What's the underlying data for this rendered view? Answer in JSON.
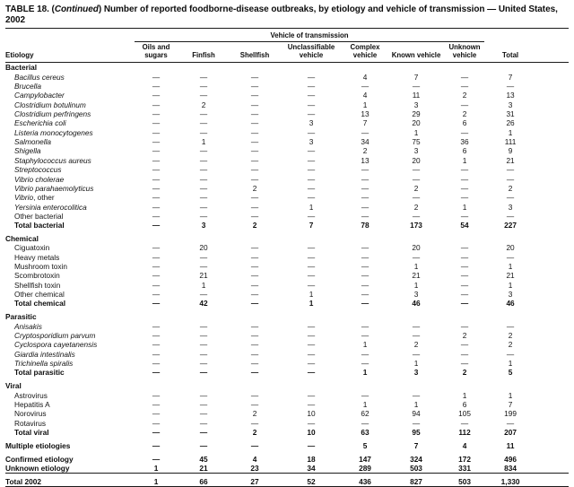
{
  "title": {
    "prefix": "TABLE 18. (",
    "continued": "Continued",
    "suffix": ") Number of reported foodborne-disease outbreaks, by etiology and vehicle of transmission — United States, 2002"
  },
  "table": {
    "spanner": "Vehicle of transmission",
    "etiology_header": "Etiology",
    "columns": [
      "Oils and sugars",
      "Finfish",
      "Shellfish",
      "Unclassifiable vehicle",
      "Complex vehicle",
      "Known vehicle",
      "Unknown vehicle",
      "Total"
    ],
    "rows": [
      {
        "type": "section",
        "label": "Bacterial"
      },
      {
        "type": "species",
        "label": "Bacillus cereus",
        "values": [
          "—",
          "—",
          "—",
          "—",
          "4",
          "7",
          "—",
          "7"
        ]
      },
      {
        "type": "species",
        "label": "Brucella",
        "values": [
          "—",
          "—",
          "—",
          "—",
          "—",
          "—",
          "—",
          "—"
        ]
      },
      {
        "type": "species",
        "label": "Campylobacter",
        "values": [
          "—",
          "—",
          "—",
          "—",
          "4",
          "11",
          "2",
          "13"
        ]
      },
      {
        "type": "species",
        "label": "Clostridium botulinum",
        "values": [
          "—",
          "2",
          "—",
          "—",
          "1",
          "3",
          "—",
          "3"
        ]
      },
      {
        "type": "species",
        "label": "Clostridium perfringens",
        "values": [
          "—",
          "—",
          "—",
          "—",
          "13",
          "29",
          "2",
          "31"
        ]
      },
      {
        "type": "species",
        "label": "Escherichia coli",
        "values": [
          "—",
          "—",
          "—",
          "3",
          "7",
          "20",
          "6",
          "26"
        ]
      },
      {
        "type": "species",
        "label": "Listeria monocytogenes",
        "values": [
          "—",
          "—",
          "—",
          "—",
          "—",
          "1",
          "—",
          "1"
        ]
      },
      {
        "type": "species",
        "label": "Salmonella",
        "values": [
          "—",
          "1",
          "—",
          "3",
          "34",
          "75",
          "36",
          "111"
        ]
      },
      {
        "type": "species",
        "label": "Shigella",
        "values": [
          "—",
          "—",
          "—",
          "—",
          "2",
          "3",
          "6",
          "9"
        ]
      },
      {
        "type": "species",
        "label": "Staphylococcus aureus",
        "values": [
          "—",
          "—",
          "—",
          "—",
          "13",
          "20",
          "1",
          "21"
        ]
      },
      {
        "type": "species",
        "label": "Streptococcus",
        "values": [
          "—",
          "—",
          "—",
          "—",
          "—",
          "—",
          "—",
          "—"
        ]
      },
      {
        "type": "species",
        "label": "Vibrio cholerae",
        "values": [
          "—",
          "—",
          "—",
          "—",
          "—",
          "—",
          "—",
          "—"
        ]
      },
      {
        "type": "species",
        "label": "Vibrio parahaemolyticus",
        "values": [
          "—",
          "—",
          "2",
          "—",
          "—",
          "2",
          "—",
          "2"
        ]
      },
      {
        "type": "species",
        "label": "Vibrio",
        "suffix": ", other",
        "values": [
          "—",
          "—",
          "—",
          "—",
          "—",
          "—",
          "—",
          "—"
        ]
      },
      {
        "type": "species",
        "label": "Yersinia enterocolitica",
        "values": [
          "—",
          "—",
          "—",
          "1",
          "—",
          "2",
          "1",
          "3"
        ]
      },
      {
        "type": "item",
        "label": "Other bacterial",
        "values": [
          "—",
          "—",
          "—",
          "—",
          "—",
          "—",
          "—",
          "—"
        ]
      },
      {
        "type": "total",
        "label": "Total bacterial",
        "values": [
          "—",
          "3",
          "2",
          "7",
          "78",
          "173",
          "54",
          "227"
        ]
      },
      {
        "type": "section",
        "label": "Chemical",
        "gap_before": true
      },
      {
        "type": "item",
        "label": "Ciguatoxin",
        "values": [
          "—",
          "20",
          "—",
          "—",
          "—",
          "20",
          "—",
          "20"
        ]
      },
      {
        "type": "item",
        "label": "Heavy metals",
        "values": [
          "—",
          "—",
          "—",
          "—",
          "—",
          "—",
          "—",
          "—"
        ]
      },
      {
        "type": "item",
        "label": "Mushroom toxin",
        "values": [
          "—",
          "—",
          "—",
          "—",
          "—",
          "1",
          "—",
          "1"
        ]
      },
      {
        "type": "item",
        "label": "Scombrotoxin",
        "values": [
          "—",
          "21",
          "—",
          "—",
          "—",
          "21",
          "—",
          "21"
        ]
      },
      {
        "type": "item",
        "label": "Shellfish toxin",
        "values": [
          "—",
          "1",
          "—",
          "—",
          "—",
          "1",
          "—",
          "1"
        ]
      },
      {
        "type": "item",
        "label": "Other chemical",
        "values": [
          "—",
          "—",
          "—",
          "1",
          "—",
          "3",
          "—",
          "3"
        ]
      },
      {
        "type": "total",
        "label": "Total chemical",
        "values": [
          "—",
          "42",
          "—",
          "1",
          "—",
          "46",
          "—",
          "46"
        ]
      },
      {
        "type": "section",
        "label": "Parasitic",
        "gap_before": true
      },
      {
        "type": "species",
        "label": "Anisakis",
        "values": [
          "—",
          "—",
          "—",
          "—",
          "—",
          "—",
          "—",
          "—"
        ]
      },
      {
        "type": "species",
        "label": "Cryptosporidium parvum",
        "values": [
          "—",
          "—",
          "—",
          "—",
          "—",
          "—",
          "2",
          "2"
        ]
      },
      {
        "type": "species",
        "label": "Cyclospora cayetanensis",
        "values": [
          "—",
          "—",
          "—",
          "—",
          "1",
          "2",
          "—",
          "2"
        ]
      },
      {
        "type": "species",
        "label": "Giardia intestinalis",
        "values": [
          "—",
          "—",
          "—",
          "—",
          "—",
          "—",
          "—",
          "—"
        ]
      },
      {
        "type": "species",
        "label": "Trichinella spiralis",
        "values": [
          "—",
          "—",
          "—",
          "—",
          "—",
          "1",
          "—",
          "1"
        ]
      },
      {
        "type": "total",
        "label": "Total parasitic",
        "values": [
          "—",
          "—",
          "—",
          "—",
          "1",
          "3",
          "2",
          "5"
        ]
      },
      {
        "type": "section",
        "label": "Viral",
        "gap_before": true
      },
      {
        "type": "item",
        "label": "Astrovirus",
        "values": [
          "—",
          "—",
          "—",
          "—",
          "—",
          "—",
          "1",
          "1"
        ]
      },
      {
        "type": "item",
        "label": "Hepatitis A",
        "values": [
          "—",
          "—",
          "—",
          "—",
          "1",
          "1",
          "6",
          "7"
        ]
      },
      {
        "type": "item",
        "label": "Norovirus",
        "values": [
          "—",
          "—",
          "2",
          "10",
          "62",
          "94",
          "105",
          "199"
        ]
      },
      {
        "type": "item",
        "label": "Rotavirus",
        "values": [
          "—",
          "—",
          "—",
          "—",
          "—",
          "—",
          "—",
          "—"
        ]
      },
      {
        "type": "total",
        "label": "Total viral",
        "values": [
          "—",
          "—",
          "2",
          "10",
          "63",
          "95",
          "112",
          "207"
        ]
      },
      {
        "type": "standalone",
        "label": "Multiple etiologies",
        "gap_before": true,
        "values": [
          "—",
          "—",
          "—",
          "—",
          "5",
          "7",
          "4",
          "11"
        ]
      },
      {
        "type": "standalone",
        "label": "Confirmed etiology",
        "gap_before": true,
        "values": [
          "—",
          "45",
          "4",
          "18",
          "147",
          "324",
          "172",
          "496"
        ]
      },
      {
        "type": "standalone",
        "label": "Unknown etiology",
        "values": [
          "1",
          "21",
          "23",
          "34",
          "289",
          "503",
          "331",
          "834"
        ]
      },
      {
        "type": "grand",
        "label": "Total 2002",
        "values": [
          "1",
          "66",
          "27",
          "52",
          "436",
          "827",
          "503",
          "1,330"
        ]
      }
    ]
  }
}
